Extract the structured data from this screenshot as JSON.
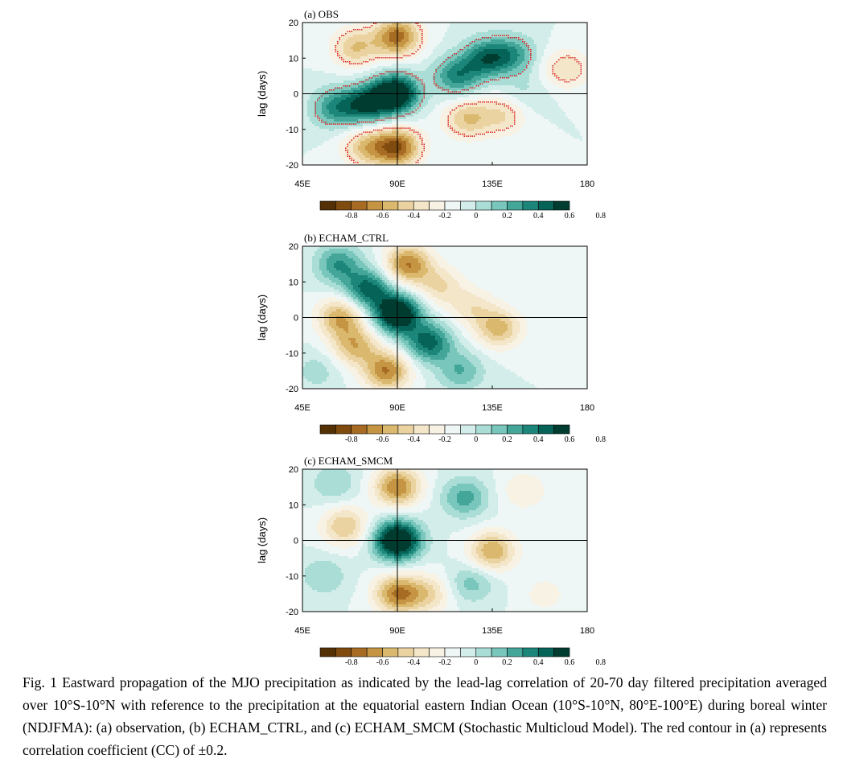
{
  "chart_data": [
    {
      "type": "heatmap",
      "title": "(a) OBS",
      "ylabel": "lag (days)",
      "xticks": [
        "45E",
        "90E",
        "135E",
        "180"
      ],
      "yticks": [
        "20",
        "10",
        "0",
        "-10",
        "-20"
      ],
      "xlim": [
        45,
        180
      ],
      "ylim": [
        -20,
        20
      ],
      "colorbar": {
        "ticks": [
          "-0.8",
          "-0.6",
          "-0.4",
          "-0.2",
          "0",
          "0.2",
          "0.4",
          "0.6",
          "0.8"
        ]
      },
      "features": [
        {
          "lon": 89,
          "lag": 0,
          "cc": 0.85
        },
        {
          "lon": 75,
          "lag": -3,
          "cc": 0.55
        },
        {
          "lon": 60,
          "lag": -4,
          "cc": 0.4
        },
        {
          "lon": 118,
          "lag": 5,
          "cc": 0.45
        },
        {
          "lon": 132,
          "lag": 10,
          "cc": 0.5
        },
        {
          "lon": 145,
          "lag": 11,
          "cc": 0.35
        },
        {
          "lon": 90,
          "lag": 16,
          "cc": -0.65
        },
        {
          "lon": 70,
          "lag": 13,
          "cc": -0.4
        },
        {
          "lon": 90,
          "lag": -15,
          "cc": -0.7
        },
        {
          "lon": 75,
          "lag": -15,
          "cc": -0.4
        },
        {
          "lon": 123,
          "lag": -7,
          "cc": -0.4
        },
        {
          "lon": 140,
          "lag": -6,
          "cc": -0.3
        },
        {
          "lon": 170,
          "lag": 7,
          "cc": -0.3
        },
        {
          "lon": 150,
          "lag": 0,
          "cc": 0.12
        }
      ]
    },
    {
      "type": "heatmap",
      "title": "(b) ECHAM_CTRL",
      "ylabel": "lag (days)",
      "xticks": [
        "45E",
        "90E",
        "135E",
        "180"
      ],
      "yticks": [
        "20",
        "10",
        "0",
        "-10",
        "-20"
      ],
      "xlim": [
        45,
        180
      ],
      "ylim": [
        -20,
        20
      ],
      "colorbar": {
        "ticks": [
          "-0.8",
          "-0.6",
          "-0.4",
          "-0.2",
          "0",
          "0.2",
          "0.4",
          "0.6",
          "0.8"
        ]
      },
      "features": [
        {
          "lon": 90,
          "lag": 1,
          "cc": 0.85
        },
        {
          "lon": 76,
          "lag": 8,
          "cc": 0.55
        },
        {
          "lon": 105,
          "lag": -7,
          "cc": 0.55
        },
        {
          "lon": 62,
          "lag": 15,
          "cc": 0.4
        },
        {
          "lon": 120,
          "lag": -15,
          "cc": 0.3
        },
        {
          "lon": 52,
          "lag": -15,
          "cc": 0.15
        },
        {
          "lon": 95,
          "lag": 15,
          "cc": -0.6
        },
        {
          "lon": 110,
          "lag": 9,
          "cc": -0.3
        },
        {
          "lon": 63,
          "lag": 0,
          "cc": -0.5
        },
        {
          "lon": 85,
          "lag": -15,
          "cc": -0.6
        },
        {
          "lon": 70,
          "lag": -8,
          "cc": -0.45
        },
        {
          "lon": 138,
          "lag": -3,
          "cc": -0.45
        },
        {
          "lon": 125,
          "lag": 3,
          "cc": -0.25
        }
      ]
    },
    {
      "type": "heatmap",
      "title": "(c) ECHAM_SMCM",
      "ylabel": "lag (days)",
      "xticks": [
        "45E",
        "90E",
        "135E",
        "180"
      ],
      "yticks": [
        "20",
        "10",
        "0",
        "-10",
        "-20"
      ],
      "xlim": [
        45,
        180
      ],
      "ylim": [
        -20,
        20
      ],
      "colorbar": {
        "ticks": [
          "-0.8",
          "-0.6",
          "-0.4",
          "-0.2",
          "0",
          "0.2",
          "0.4",
          "0.6",
          "0.8"
        ]
      },
      "features": [
        {
          "lon": 90,
          "lag": 0,
          "cc": 0.9
        },
        {
          "lon": 122,
          "lag": 12,
          "cc": 0.35
        },
        {
          "lon": 60,
          "lag": 16,
          "cc": 0.2
        },
        {
          "lon": 125,
          "lag": -12,
          "cc": 0.25
        },
        {
          "lon": 55,
          "lag": -10,
          "cc": 0.2
        },
        {
          "lon": 90,
          "lag": 15,
          "cc": -0.6
        },
        {
          "lon": 90,
          "lag": -15,
          "cc": -0.6
        },
        {
          "lon": 65,
          "lag": 4,
          "cc": -0.4
        },
        {
          "lon": 135,
          "lag": -3,
          "cc": -0.5
        },
        {
          "lon": 150,
          "lag": 14,
          "cc": -0.2
        },
        {
          "lon": 160,
          "lag": -15,
          "cc": -0.15
        },
        {
          "lon": 105,
          "lag": -15,
          "cc": -0.3
        }
      ]
    }
  ],
  "caption": "Fig. 1 Eastward propagation of the MJO precipitation as indicated by the lead-lag correlation of 20-70 day filtered precipitation averaged over 10°S-10°N with reference to the precipitation at the equatorial eastern Indian Ocean (10°S-10°N, 80°E-100°E) during boreal winter (NDJFMA): (a) observation, (b) ECHAM_CTRL, and (c) ECHAM_SMCM (Stochastic Multicloud Model). The red contour in (a) represents correlation coefficient (CC) of ±0.2.",
  "colors": {
    "negative_extreme": "#543005",
    "positive_extreme": "#003c30",
    "contour": "#dd2020",
    "palette": [
      "#543005",
      "#7f4b0f",
      "#a76b24",
      "#c59543",
      "#dab96f",
      "#ead3a0",
      "#f4e6c8",
      "#f8f2e4",
      "#eef7f5",
      "#d3eeea",
      "#a9ddd6",
      "#78c6bc",
      "#44a699",
      "#1d867a",
      "#066357",
      "#003c30"
    ]
  }
}
